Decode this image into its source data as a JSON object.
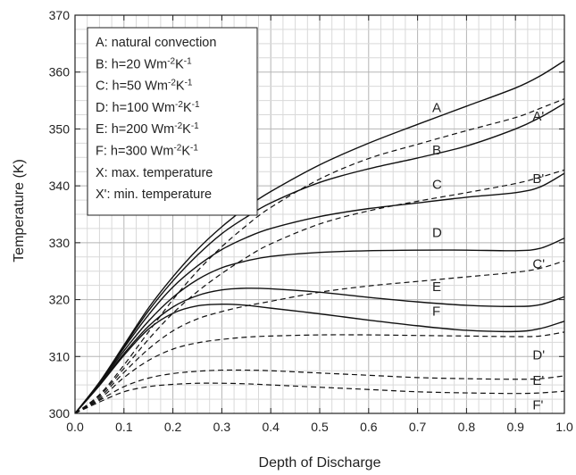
{
  "chart_data": {
    "type": "line",
    "xlabel": "Depth of Discharge",
    "ylabel": "Temperature (K)",
    "xlim": [
      0.0,
      1.0
    ],
    "ylim": [
      300,
      370
    ],
    "xticks": [
      "0.0",
      "0.1",
      "0.2",
      "0.3",
      "0.4",
      "0.5",
      "0.6",
      "0.7",
      "0.8",
      "0.9",
      "1.0"
    ],
    "yticks": [
      "300",
      "310",
      "320",
      "330",
      "340",
      "350",
      "360",
      "370"
    ],
    "grid": true,
    "legend_position": "top-left",
    "legend": [
      {
        "key": "A:",
        "text": " natural convection",
        "unit": ""
      },
      {
        "key": "B:",
        "text": " h=20 Wm",
        "unit": "-2K-1"
      },
      {
        "key": "C:",
        "text": " h=50 Wm",
        "unit": "-2K-1"
      },
      {
        "key": "D:",
        "text": " h=100 Wm",
        "unit": "-2K-1"
      },
      {
        "key": "E:",
        "text": " h=200 Wm",
        "unit": "-2K-1"
      },
      {
        "key": "F:",
        "text": " h=300 Wm",
        "unit": "-2K-1"
      },
      {
        "key": "X:",
        "text": " max. temperature",
        "unit": ""
      },
      {
        "key": "X':",
        "text": " min. temperature",
        "unit": ""
      }
    ],
    "series": [
      {
        "name": "A",
        "style": "solid",
        "label_at": [
          0.73,
          353
        ],
        "x": [
          0.0,
          0.05,
          0.1,
          0.15,
          0.2,
          0.25,
          0.3,
          0.35,
          0.4,
          0.5,
          0.6,
          0.7,
          0.8,
          0.9,
          0.95,
          1.0
        ],
        "y": [
          300,
          305.5,
          312,
          318.5,
          324,
          328.8,
          332.8,
          336.2,
          339,
          343.7,
          347.5,
          350.8,
          354,
          357.2,
          359.3,
          362
        ]
      },
      {
        "name": "B",
        "style": "solid",
        "label_at": [
          0.73,
          345.5
        ],
        "x": [
          0.0,
          0.05,
          0.1,
          0.15,
          0.2,
          0.25,
          0.3,
          0.35,
          0.4,
          0.5,
          0.6,
          0.7,
          0.8,
          0.9,
          0.95,
          1.0
        ],
        "y": [
          300,
          305.4,
          311.8,
          318,
          323.3,
          327.8,
          331.6,
          334.5,
          337,
          340.6,
          343,
          344.9,
          347,
          350,
          352,
          354.5
        ]
      },
      {
        "name": "C",
        "style": "solid",
        "label_at": [
          0.73,
          339.5
        ],
        "x": [
          0.0,
          0.05,
          0.1,
          0.15,
          0.2,
          0.25,
          0.3,
          0.35,
          0.4,
          0.5,
          0.6,
          0.7,
          0.8,
          0.9,
          0.95,
          1.0
        ],
        "y": [
          300,
          305.3,
          311.5,
          317.3,
          322.2,
          325.9,
          328.8,
          330.9,
          332.5,
          334.6,
          336,
          337,
          338,
          338.8,
          339.8,
          342.2
        ]
      },
      {
        "name": "D",
        "style": "solid",
        "label_at": [
          0.73,
          331
        ],
        "x": [
          0.0,
          0.05,
          0.1,
          0.15,
          0.2,
          0.25,
          0.3,
          0.35,
          0.4,
          0.5,
          0.6,
          0.7,
          0.8,
          0.9,
          0.95,
          1.0
        ],
        "y": [
          300,
          305.2,
          311,
          316.2,
          320.4,
          323.5,
          325.6,
          326.8,
          327.6,
          328.3,
          328.6,
          328.7,
          328.7,
          328.6,
          329,
          330.8
        ]
      },
      {
        "name": "E",
        "style": "solid",
        "label_at": [
          0.73,
          321.5
        ],
        "x": [
          0.0,
          0.05,
          0.1,
          0.15,
          0.2,
          0.25,
          0.3,
          0.35,
          0.4,
          0.5,
          0.6,
          0.7,
          0.8,
          0.9,
          0.95,
          1.0
        ],
        "y": [
          300,
          305,
          310.5,
          315.3,
          318.7,
          320.7,
          321.7,
          322,
          321.9,
          321.3,
          320.4,
          319.6,
          319,
          318.8,
          319.1,
          320.5
        ]
      },
      {
        "name": "F",
        "style": "solid",
        "label_at": [
          0.73,
          317.2
        ],
        "x": [
          0.0,
          0.05,
          0.1,
          0.15,
          0.2,
          0.25,
          0.3,
          0.35,
          0.4,
          0.5,
          0.6,
          0.7,
          0.8,
          0.9,
          0.95,
          1.0
        ],
        "y": [
          300,
          304.9,
          310.2,
          314.8,
          317.6,
          318.9,
          319.2,
          319,
          318.5,
          317.5,
          316.4,
          315.4,
          314.6,
          314.4,
          314.9,
          316.2
        ]
      },
      {
        "name": "A'",
        "style": "dashed",
        "label_at": [
          0.935,
          351.5
        ],
        "x": [
          0.0,
          0.05,
          0.1,
          0.15,
          0.2,
          0.25,
          0.3,
          0.35,
          0.4,
          0.5,
          0.6,
          0.7,
          0.8,
          0.9,
          0.95,
          1.0
        ],
        "y": [
          300,
          303.3,
          308.5,
          314.3,
          320,
          325,
          329.3,
          333,
          336.2,
          341.2,
          344.8,
          347.3,
          349.7,
          352,
          353.6,
          355.3
        ]
      },
      {
        "name": "B'",
        "style": "dashed",
        "label_at": [
          0.935,
          340.5
        ],
        "x": [
          0.0,
          0.05,
          0.1,
          0.15,
          0.2,
          0.25,
          0.3,
          0.35,
          0.4,
          0.5,
          0.6,
          0.7,
          0.8,
          0.9,
          0.95,
          1.0
        ],
        "y": [
          300,
          303.1,
          307.9,
          313,
          317.6,
          321.4,
          324.6,
          327.4,
          329.8,
          333.3,
          335.6,
          337.3,
          338.8,
          340.4,
          341.5,
          342.8
        ]
      },
      {
        "name": "C'",
        "style": "dashed",
        "label_at": [
          0.935,
          325.5
        ],
        "x": [
          0.0,
          0.05,
          0.1,
          0.15,
          0.2,
          0.25,
          0.3,
          0.35,
          0.4,
          0.5,
          0.6,
          0.7,
          0.8,
          0.9,
          0.95,
          1.0
        ],
        "y": [
          300,
          302.8,
          307.2,
          311.3,
          314.5,
          316.6,
          317.9,
          318.9,
          319.7,
          321.3,
          322.4,
          323.2,
          324,
          324.8,
          325.5,
          326.8
        ]
      },
      {
        "name": "D'",
        "style": "dashed",
        "label_at": [
          0.935,
          309.5
        ],
        "x": [
          0.0,
          0.05,
          0.1,
          0.15,
          0.2,
          0.25,
          0.3,
          0.35,
          0.4,
          0.5,
          0.6,
          0.7,
          0.8,
          0.9,
          0.95,
          1.0
        ],
        "y": [
          300,
          302.5,
          306.3,
          309.3,
          311.3,
          312.4,
          313,
          313.4,
          313.6,
          313.8,
          313.8,
          313.7,
          313.6,
          313.5,
          313.6,
          314.3
        ]
      },
      {
        "name": "E'",
        "style": "dashed",
        "label_at": [
          0.935,
          305
        ],
        "x": [
          0.0,
          0.05,
          0.1,
          0.15,
          0.2,
          0.25,
          0.3,
          0.35,
          0.4,
          0.5,
          0.6,
          0.7,
          0.8,
          0.9,
          0.95,
          1.0
        ],
        "y": [
          300,
          302.3,
          304.7,
          306.2,
          307,
          307.4,
          307.6,
          307.6,
          307.5,
          307.1,
          306.7,
          306.3,
          306.1,
          306,
          306.1,
          306.6
        ]
      },
      {
        "name": "F'",
        "style": "dashed",
        "label_at": [
          0.935,
          300.7
        ],
        "x": [
          0.0,
          0.05,
          0.1,
          0.15,
          0.2,
          0.25,
          0.3,
          0.35,
          0.4,
          0.5,
          0.6,
          0.7,
          0.8,
          0.9,
          0.95,
          1.0
        ],
        "y": [
          300,
          302,
          303.8,
          304.7,
          305.1,
          305.3,
          305.3,
          305.2,
          305,
          304.6,
          304.2,
          303.8,
          303.6,
          303.5,
          303.6,
          303.9
        ]
      }
    ]
  }
}
